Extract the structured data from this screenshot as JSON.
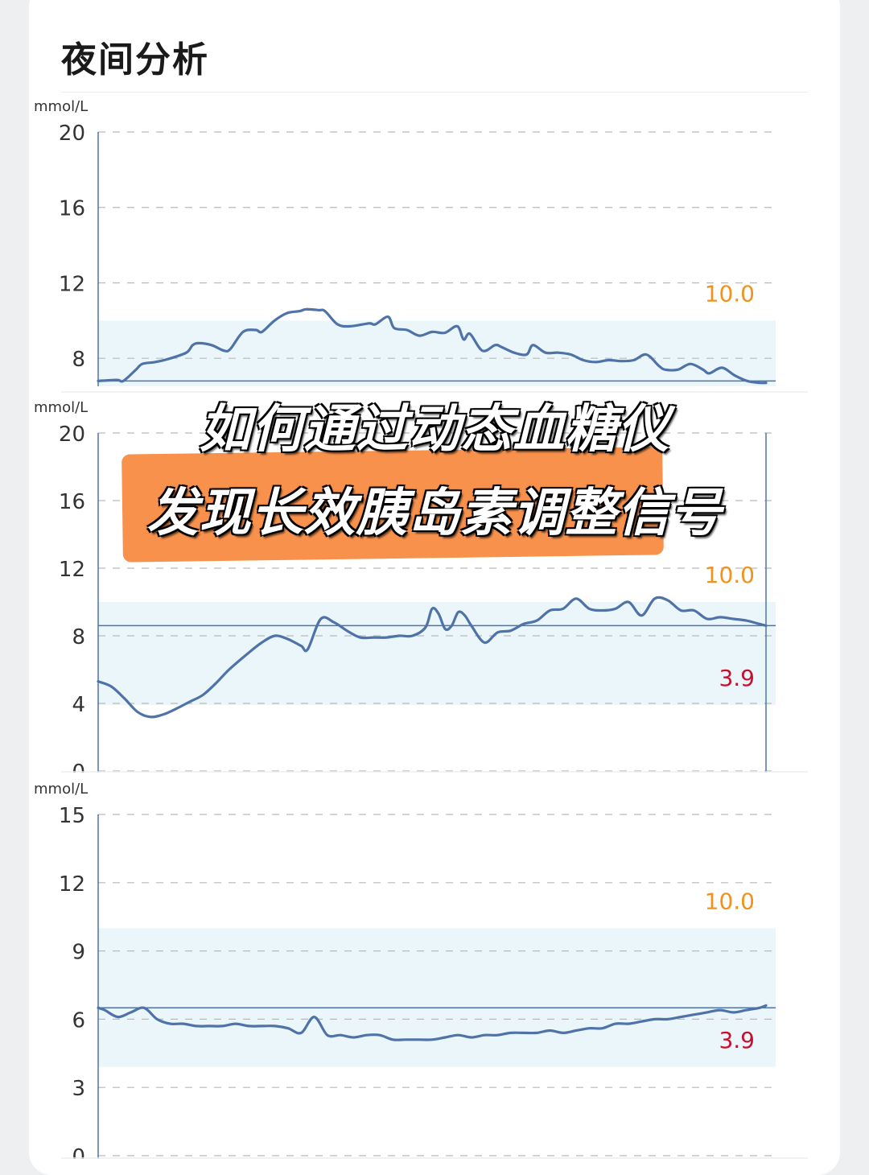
{
  "page": {
    "title": "夜间分析",
    "headline_line1": "如何通过动态血糖仪",
    "headline_line2": "发现长效胰岛素调整信号"
  },
  "colors": {
    "line": "#4f73a8",
    "target_band": "#eaf6fa",
    "high_label": "#f0921d",
    "low_label": "#c8102e",
    "banner": "#f7914b"
  },
  "chart_data": [
    {
      "type": "line",
      "unit_label": "mmol/L",
      "ylim": [
        6.6,
        20
      ],
      "yticks": [
        8,
        12,
        16,
        20
      ],
      "target_range": [
        3.9,
        10.0
      ],
      "high_label": "10.0",
      "low_label": "",
      "reference_line": 6.8,
      "grid": "dashed horizontal",
      "points": [
        [
          0,
          6.8
        ],
        [
          3,
          6.85
        ],
        [
          4,
          6.8
        ],
        [
          6,
          7.4
        ],
        [
          7,
          7.7
        ],
        [
          9,
          7.8
        ],
        [
          11,
          7.95
        ],
        [
          14,
          8.3
        ],
        [
          15,
          8.7
        ],
        [
          16,
          8.8
        ],
        [
          18,
          8.7
        ],
        [
          20,
          8.4
        ],
        [
          21,
          8.5
        ],
        [
          23,
          9.4
        ],
        [
          25,
          9.5
        ],
        [
          26,
          9.4
        ],
        [
          28,
          10.0
        ],
        [
          30,
          10.4
        ],
        [
          32,
          10.5
        ],
        [
          33,
          10.6
        ],
        [
          35,
          10.55
        ],
        [
          36,
          10.5
        ],
        [
          38,
          9.8
        ],
        [
          40,
          9.7
        ],
        [
          43,
          9.85
        ],
        [
          44,
          9.8
        ],
        [
          46,
          10.2
        ],
        [
          47,
          9.6
        ],
        [
          49,
          9.5
        ],
        [
          51,
          9.2
        ],
        [
          53,
          9.4
        ],
        [
          55,
          9.35
        ],
        [
          57,
          9.7
        ],
        [
          58,
          9.0
        ],
        [
          59,
          9.3
        ],
        [
          61,
          8.4
        ],
        [
          63,
          8.7
        ],
        [
          64,
          8.6
        ],
        [
          66,
          8.3
        ],
        [
          68,
          8.2
        ],
        [
          69,
          8.7
        ],
        [
          71,
          8.3
        ],
        [
          73,
          8.3
        ],
        [
          75,
          8.2
        ],
        [
          77,
          7.9
        ],
        [
          79,
          7.8
        ],
        [
          81,
          7.9
        ],
        [
          83,
          7.85
        ],
        [
          85,
          7.9
        ],
        [
          87,
          8.2
        ],
        [
          89,
          7.6
        ],
        [
          90,
          7.4
        ],
        [
          92,
          7.4
        ],
        [
          94,
          7.7
        ],
        [
          96,
          7.4
        ],
        [
          97,
          7.2
        ],
        [
          99,
          7.5
        ],
        [
          101,
          7.1
        ],
        [
          103,
          6.8
        ],
        [
          105,
          6.7
        ],
        [
          106,
          6.7
        ]
      ]
    },
    {
      "type": "line",
      "unit_label": "mmol/L",
      "ylim": [
        0,
        20
      ],
      "yticks": [
        0,
        4,
        8,
        12,
        16,
        20
      ],
      "target_range": [
        3.9,
        10.0
      ],
      "high_label": "10.0",
      "low_label": "3.9",
      "reference_line": 8.6,
      "grid": "dashed horizontal",
      "points": [
        [
          0,
          5.3
        ],
        [
          2,
          5.0
        ],
        [
          4,
          4.3
        ],
        [
          6,
          3.5
        ],
        [
          8,
          3.2
        ],
        [
          10,
          3.35
        ],
        [
          12,
          3.7
        ],
        [
          14,
          4.1
        ],
        [
          16,
          4.5
        ],
        [
          18,
          5.2
        ],
        [
          20,
          6.0
        ],
        [
          23,
          7.0
        ],
        [
          25,
          7.6
        ],
        [
          27,
          8.0
        ],
        [
          29,
          7.8
        ],
        [
          31,
          7.4
        ],
        [
          32,
          7.2
        ],
        [
          34,
          9.0
        ],
        [
          36,
          8.8
        ],
        [
          38,
          8.3
        ],
        [
          40,
          7.9
        ],
        [
          42,
          7.9
        ],
        [
          44,
          7.9
        ],
        [
          46,
          8.0
        ],
        [
          48,
          8.0
        ],
        [
          50,
          8.5
        ],
        [
          51,
          9.6
        ],
        [
          52,
          9.3
        ],
        [
          53,
          8.4
        ],
        [
          54,
          8.6
        ],
        [
          55,
          9.4
        ],
        [
          56,
          9.2
        ],
        [
          57,
          8.6
        ],
        [
          59,
          7.6
        ],
        [
          61,
          8.2
        ],
        [
          63,
          8.3
        ],
        [
          65,
          8.7
        ],
        [
          67,
          8.9
        ],
        [
          69,
          9.5
        ],
        [
          71,
          9.6
        ],
        [
          73,
          10.2
        ],
        [
          75,
          9.6
        ],
        [
          77,
          9.5
        ],
        [
          79,
          9.6
        ],
        [
          81,
          10.0
        ],
        [
          83,
          9.2
        ],
        [
          85,
          10.2
        ],
        [
          87,
          10.1
        ],
        [
          89,
          9.5
        ],
        [
          91,
          9.5
        ],
        [
          93,
          9.0
        ],
        [
          95,
          9.1
        ],
        [
          97,
          9.0
        ],
        [
          99,
          8.9
        ],
        [
          101,
          8.7
        ],
        [
          102,
          8.6
        ]
      ]
    },
    {
      "type": "line",
      "unit_label": "mmol/L",
      "ylim": [
        0,
        15
      ],
      "yticks": [
        0,
        3,
        6,
        9,
        12,
        15
      ],
      "target_range": [
        3.9,
        10.0
      ],
      "high_label": "10.0",
      "low_label": "3.9",
      "reference_line": 6.5,
      "grid": "dashed horizontal",
      "points": [
        [
          0,
          6.5
        ],
        [
          1,
          6.4
        ],
        [
          3,
          6.1
        ],
        [
          5,
          6.3
        ],
        [
          7,
          6.5
        ],
        [
          9,
          6.0
        ],
        [
          11,
          5.8
        ],
        [
          13,
          5.8
        ],
        [
          15,
          5.7
        ],
        [
          17,
          5.7
        ],
        [
          19,
          5.7
        ],
        [
          21,
          5.8
        ],
        [
          23,
          5.7
        ],
        [
          25,
          5.7
        ],
        [
          27,
          5.7
        ],
        [
          29,
          5.6
        ],
        [
          31,
          5.4
        ],
        [
          33,
          6.1
        ],
        [
          35,
          5.3
        ],
        [
          37,
          5.3
        ],
        [
          39,
          5.2
        ],
        [
          41,
          5.3
        ],
        [
          43,
          5.3
        ],
        [
          45,
          5.1
        ],
        [
          47,
          5.1
        ],
        [
          49,
          5.1
        ],
        [
          51,
          5.1
        ],
        [
          53,
          5.2
        ],
        [
          55,
          5.3
        ],
        [
          57,
          5.2
        ],
        [
          59,
          5.3
        ],
        [
          61,
          5.3
        ],
        [
          63,
          5.4
        ],
        [
          65,
          5.4
        ],
        [
          67,
          5.4
        ],
        [
          69,
          5.5
        ],
        [
          71,
          5.4
        ],
        [
          73,
          5.5
        ],
        [
          75,
          5.6
        ],
        [
          77,
          5.6
        ],
        [
          79,
          5.8
        ],
        [
          81,
          5.8
        ],
        [
          83,
          5.9
        ],
        [
          85,
          6.0
        ],
        [
          87,
          6.0
        ],
        [
          89,
          6.1
        ],
        [
          91,
          6.2
        ],
        [
          93,
          6.3
        ],
        [
          95,
          6.4
        ],
        [
          97,
          6.3
        ],
        [
          99,
          6.4
        ],
        [
          101,
          6.5
        ],
        [
          102,
          6.6
        ]
      ]
    }
  ]
}
